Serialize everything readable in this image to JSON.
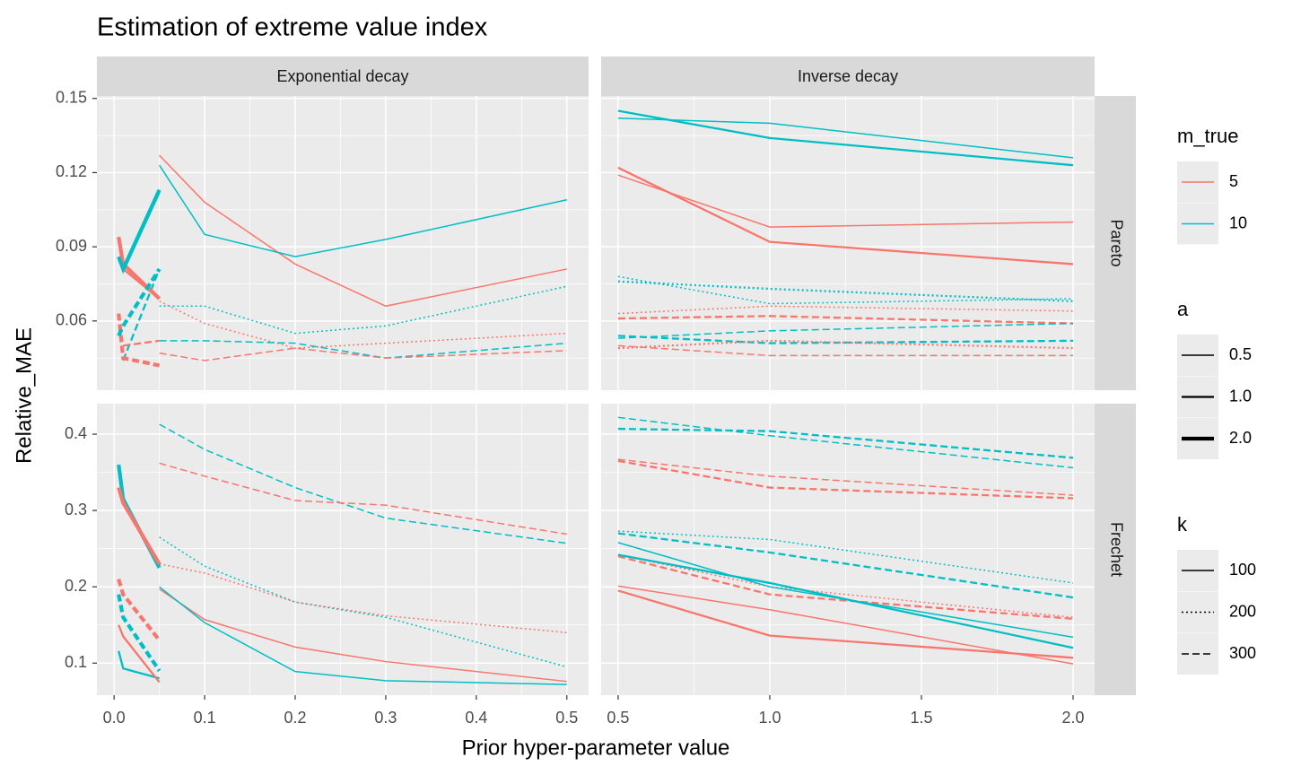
{
  "chart_data": {
    "type": "line",
    "title": "Estimation of extreme value index",
    "x_label": "Prior hyper-parameter value",
    "y_label": "Relative_MAE",
    "columns": [
      {
        "label": "Exponential decay",
        "xlim": [
          -0.019,
          0.524
        ],
        "xticks": [
          {
            "value": 0,
            "label": "0.0"
          },
          0.1,
          0.2,
          0.3,
          0.4,
          0.5
        ]
      },
      {
        "label": "Inverse decay",
        "xlim": [
          0.444,
          2.071
        ],
        "xticks": [
          0.5,
          {
            "value": 1,
            "label": "1.0"
          },
          1.5,
          {
            "value": 2,
            "label": "2.0"
          }
        ]
      }
    ],
    "rows": [
      {
        "label": "Pareto",
        "ylim": [
          0.032,
          0.151
        ],
        "yticks": [
          0.06,
          0.09,
          0.12,
          0.15
        ]
      },
      {
        "label": "Frechet",
        "ylim": [
          0.058,
          0.44
        ],
        "yticks": [
          0.1,
          0.2,
          0.3,
          0.4
        ]
      }
    ],
    "grid": true,
    "legends": [
      {
        "title": "m_true",
        "labels": [
          "5",
          "10"
        ],
        "colors": [
          "#F8766D",
          "#00BFC4"
        ]
      },
      {
        "title": "a",
        "labels": [
          "0.5",
          "1.0",
          "2.0"
        ]
      },
      {
        "title": "k",
        "labels": [
          "100",
          "200",
          "300"
        ]
      }
    ],
    "panels": [
      [
        [
          {
            "m_true": "5",
            "a": "0.5",
            "k": "100",
            "x": [
              0.05,
              0.1,
              0.2,
              0.3,
              0.5
            ],
            "values": [
              0.127,
              0.108,
              0.083,
              0.066,
              0.081
            ]
          },
          {
            "m_true": "10",
            "a": "0.5",
            "k": "100",
            "x": [
              0.05,
              0.1,
              0.2,
              0.3,
              0.5
            ],
            "values": [
              0.123,
              0.095,
              0.086,
              0.093,
              0.109
            ]
          },
          {
            "m_true": "10",
            "a": "0.5",
            "k": "200",
            "x": [
              0.05,
              0.1,
              0.2,
              0.3,
              0.5
            ],
            "values": [
              0.066,
              0.066,
              0.055,
              0.058,
              0.074
            ]
          },
          {
            "m_true": "5",
            "a": "0.5",
            "k": "200",
            "x": [
              0.05,
              0.1,
              0.2,
              0.3,
              0.5
            ],
            "values": [
              0.068,
              0.059,
              0.049,
              0.051,
              0.055
            ]
          },
          {
            "m_true": "10",
            "a": "0.5",
            "k": "300",
            "x": [
              0.05,
              0.1,
              0.2,
              0.3,
              0.5
            ],
            "values": [
              0.052,
              0.052,
              0.051,
              0.045,
              0.051
            ]
          },
          {
            "m_true": "5",
            "a": "0.5",
            "k": "300",
            "x": [
              0.05,
              0.1,
              0.2,
              0.3,
              0.5
            ],
            "values": [
              0.047,
              0.044,
              0.049,
              0.045,
              0.048
            ]
          },
          {
            "m_true": "5",
            "a": "1.0",
            "k": "100",
            "x": [
              0.01,
              0.05
            ],
            "values": [
              0.081,
              0.069
            ]
          },
          {
            "m_true": "10",
            "a": "1.0",
            "k": "100",
            "x": [
              0.01,
              0.05
            ],
            "values": [
              0.08,
              0.112
            ]
          },
          {
            "m_true": "10",
            "a": "1.0",
            "k": "300",
            "x": [
              0.01,
              0.05
            ],
            "values": [
              0.044,
              0.081
            ]
          },
          {
            "m_true": "5",
            "a": "1.0",
            "k": "300",
            "x": [
              0.01,
              0.05
            ],
            "values": [
              0.05,
              0.052
            ]
          },
          {
            "m_true": "5",
            "a": "2.0",
            "k": "100",
            "x": [
              0.005,
              0.01,
              0.05
            ],
            "values": [
              0.094,
              0.083,
              0.069
            ]
          },
          {
            "m_true": "10",
            "a": "2.0",
            "k": "100",
            "x": [
              0.005,
              0.01,
              0.05
            ],
            "values": [
              0.086,
              0.081,
              0.113
            ]
          },
          {
            "m_true": "5",
            "a": "2.0",
            "k": "300",
            "x": [
              0.005,
              0.01,
              0.05
            ],
            "values": [
              0.063,
              0.045,
              0.042
            ]
          },
          {
            "m_true": "10",
            "a": "2.0",
            "k": "300",
            "x": [
              0.005,
              0.01,
              0.05
            ],
            "values": [
              0.054,
              0.058,
              0.081
            ]
          }
        ],
        [
          {
            "m_true": "10",
            "a": "0.5",
            "k": "100",
            "x": [
              0.5,
              1,
              2
            ],
            "values": [
              0.142,
              0.14,
              0.126
            ]
          },
          {
            "m_true": "10",
            "a": "1.0",
            "k": "100",
            "x": [
              0.5,
              1,
              2
            ],
            "values": [
              0.145,
              0.134,
              0.123
            ]
          },
          {
            "m_true": "5",
            "a": "0.5",
            "k": "100",
            "x": [
              0.5,
              1,
              2
            ],
            "values": [
              0.119,
              0.098,
              0.1
            ]
          },
          {
            "m_true": "5",
            "a": "1.0",
            "k": "100",
            "x": [
              0.5,
              1,
              2
            ],
            "values": [
              0.122,
              0.092,
              0.083
            ]
          },
          {
            "m_true": "10",
            "a": "0.5",
            "k": "200",
            "x": [
              0.5,
              1,
              2
            ],
            "values": [
              0.078,
              0.067,
              0.069
            ]
          },
          {
            "m_true": "10",
            "a": "1.0",
            "k": "200",
            "x": [
              0.5,
              1,
              2
            ],
            "values": [
              0.076,
              0.073,
              0.068
            ]
          },
          {
            "m_true": "5",
            "a": "0.5",
            "k": "200",
            "x": [
              0.5,
              1,
              2
            ],
            "values": [
              0.063,
              0.066,
              0.064
            ]
          },
          {
            "m_true": "5",
            "a": "1.0",
            "k": "300",
            "x": [
              0.5,
              1,
              2
            ],
            "values": [
              0.061,
              0.062,
              0.059
            ]
          },
          {
            "m_true": "10",
            "a": "0.5",
            "k": "300",
            "x": [
              0.5,
              1,
              2
            ],
            "values": [
              0.053,
              0.056,
              0.059
            ]
          },
          {
            "m_true": "10",
            "a": "1.0",
            "k": "300",
            "x": [
              0.5,
              1,
              2
            ],
            "values": [
              0.054,
              0.051,
              0.052
            ]
          },
          {
            "m_true": "5",
            "a": "0.5",
            "k": "300",
            "x": [
              0.5,
              1,
              2
            ],
            "values": [
              0.05,
              0.046,
              0.046
            ]
          },
          {
            "m_true": "5",
            "a": "1.0",
            "k": "200",
            "x": [
              0.5,
              1,
              2
            ],
            "values": [
              0.049,
              0.052,
              0.049
            ]
          }
        ]
      ],
      [
        [
          {
            "m_true": "10",
            "a": "0.5",
            "k": "300",
            "x": [
              0.05,
              0.1,
              0.2,
              0.3,
              0.5
            ],
            "values": [
              0.413,
              0.38,
              0.33,
              0.29,
              0.257
            ]
          },
          {
            "m_true": "5",
            "a": "0.5",
            "k": "300",
            "x": [
              0.05,
              0.1,
              0.2,
              0.3,
              0.5
            ],
            "values": [
              0.362,
              0.345,
              0.313,
              0.307,
              0.269
            ]
          },
          {
            "m_true": "10",
            "a": "0.5",
            "k": "200",
            "x": [
              0.05,
              0.1,
              0.2,
              0.3,
              0.5
            ],
            "values": [
              0.265,
              0.227,
              0.18,
              0.16,
              0.095
            ]
          },
          {
            "m_true": "5",
            "a": "0.5",
            "k": "200",
            "x": [
              0.05,
              0.1,
              0.2,
              0.3,
              0.5
            ],
            "values": [
              0.23,
              0.218,
              0.18,
              0.162,
              0.14
            ]
          },
          {
            "m_true": "5",
            "a": "0.5",
            "k": "100",
            "x": [
              0.05,
              0.1,
              0.2,
              0.3,
              0.5
            ],
            "values": [
              0.197,
              0.157,
              0.121,
              0.102,
              0.076
            ]
          },
          {
            "m_true": "10",
            "a": "0.5",
            "k": "100",
            "x": [
              0.05,
              0.1,
              0.2,
              0.3,
              0.5
            ],
            "values": [
              0.2,
              0.153,
              0.089,
              0.077,
              0.072
            ]
          },
          {
            "m_true": "10",
            "a": "2.0",
            "k": "100",
            "x": [
              0.005,
              0.01,
              0.05
            ],
            "values": [
              0.36,
              0.315,
              0.225
            ]
          },
          {
            "m_true": "5",
            "a": "2.0",
            "k": "100",
            "x": [
              0.005,
              0.01,
              0.05
            ],
            "values": [
              0.33,
              0.31,
              0.23
            ]
          },
          {
            "m_true": "10",
            "a": "1.0",
            "k": "100",
            "x": [
              0.005,
              0.01,
              0.05
            ],
            "values": [
              0.116,
              0.093,
              0.08
            ]
          },
          {
            "m_true": "5",
            "a": "1.0",
            "k": "100",
            "x": [
              0.005,
              0.01,
              0.05
            ],
            "values": [
              0.15,
              0.135,
              0.075
            ]
          },
          {
            "m_true": "5",
            "a": "2.0",
            "k": "300",
            "x": [
              0.005,
              0.01,
              0.05
            ],
            "values": [
              0.21,
              0.19,
              0.13
            ]
          },
          {
            "m_true": "10",
            "a": "2.0",
            "k": "300",
            "x": [
              0.005,
              0.01,
              0.05
            ],
            "values": [
              0.19,
              0.16,
              0.09
            ]
          }
        ],
        [
          {
            "m_true": "10",
            "a": "0.5",
            "k": "300",
            "x": [
              0.5,
              1,
              2
            ],
            "values": [
              0.422,
              0.398,
              0.356
            ]
          },
          {
            "m_true": "10",
            "a": "1.0",
            "k": "300",
            "x": [
              0.5,
              1,
              2
            ],
            "values": [
              0.407,
              0.404,
              0.369
            ]
          },
          {
            "m_true": "5",
            "a": "0.5",
            "k": "300",
            "x": [
              0.5,
              1,
              2
            ],
            "values": [
              0.367,
              0.345,
              0.32
            ]
          },
          {
            "m_true": "5",
            "a": "1.0",
            "k": "300",
            "x": [
              0.5,
              1,
              2
            ],
            "values": [
              0.365,
              0.33,
              0.316
            ]
          },
          {
            "m_true": "10",
            "a": "0.5",
            "k": "200",
            "x": [
              0.5,
              1,
              2
            ],
            "values": [
              0.273,
              0.262,
              0.205
            ]
          },
          {
            "m_true": "10",
            "a": "1.0",
            "k": "300",
            "x": [
              0.5,
              1,
              2
            ],
            "values": [
              0.27,
              0.245,
              0.186
            ]
          },
          {
            "m_true": "5",
            "a": "0.5",
            "k": "200",
            "x": [
              0.5,
              1,
              2
            ],
            "values": [
              0.242,
              0.2,
              0.16
            ]
          },
          {
            "m_true": "5",
            "a": "1.0",
            "k": "300",
            "x": [
              0.5,
              1,
              2
            ],
            "values": [
              0.24,
              0.19,
              0.158
            ]
          },
          {
            "m_true": "10",
            "a": "0.5",
            "k": "100",
            "x": [
              0.5,
              1,
              2
            ],
            "values": [
              0.258,
              0.2,
              0.134
            ]
          },
          {
            "m_true": "10",
            "a": "1.0",
            "k": "100",
            "x": [
              0.5,
              1,
              2
            ],
            "values": [
              0.242,
              0.205,
              0.12
            ]
          },
          {
            "m_true": "5",
            "a": "0.5",
            "k": "100",
            "x": [
              0.5,
              1,
              2
            ],
            "values": [
              0.201,
              0.17,
              0.099
            ]
          },
          {
            "m_true": "5",
            "a": "1.0",
            "k": "100",
            "x": [
              0.5,
              1,
              2
            ],
            "values": [
              0.195,
              0.136,
              0.107
            ]
          }
        ]
      ]
    ]
  }
}
